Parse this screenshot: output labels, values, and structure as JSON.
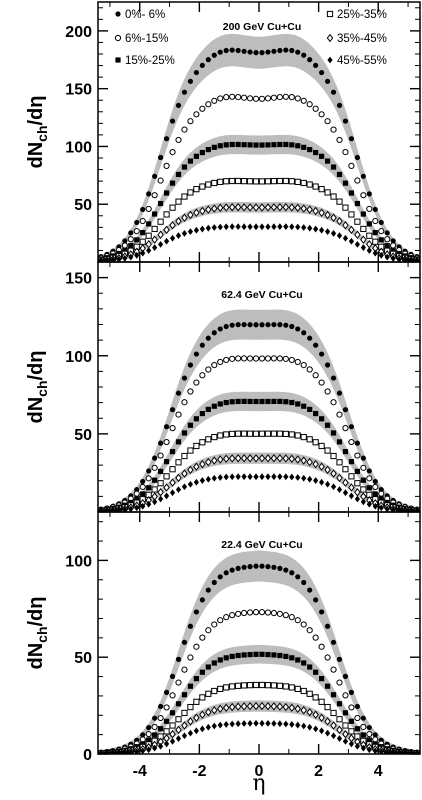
{
  "chart_data": [
    {
      "type": "scatter",
      "title": "200 GeV Cu+Cu",
      "ylabel": "dN_ch/dη",
      "xlim": [
        -5.4,
        5.4
      ],
      "ylim": [
        0,
        225
      ],
      "yticks": [
        50,
        100,
        150,
        200
      ],
      "xticks": [
        -4,
        -2,
        0,
        2,
        4
      ],
      "legend": "top",
      "band_halfwidth_fraction": 0.07,
      "series": [
        {
          "name": "0%- 6%",
          "marker": "filled-circle",
          "plateau": 186,
          "dip": 0.97,
          "edge": 3.3
        },
        {
          "name": "6%-15%",
          "marker": "open-circle",
          "plateau": 145,
          "dip": 0.97,
          "edge": 3.3
        },
        {
          "name": "15%-25%",
          "marker": "filled-square",
          "plateau": 103,
          "dip": 0.98,
          "edge": 3.3
        },
        {
          "name": "25%-35%",
          "marker": "open-square",
          "plateau": 71,
          "dip": 0.98,
          "edge": 3.3
        },
        {
          "name": "35%-45%",
          "marker": "open-diamond",
          "plateau": 48,
          "dip": 0.98,
          "edge": 3.3
        },
        {
          "name": "45%-55%",
          "marker": "filled-diamond",
          "plateau": 31,
          "dip": 0.98,
          "edge": 3.3
        }
      ]
    },
    {
      "type": "scatter",
      "title": "62.4 GeV Cu+Cu",
      "ylabel": "dN_ch/dη",
      "xlim": [
        -5.4,
        5.4
      ],
      "ylim": [
        0,
        160
      ],
      "yticks": [
        50,
        100,
        150
      ],
      "xticks": [
        -4,
        -2,
        0,
        2,
        4
      ],
      "band_halfwidth_fraction": 0.07,
      "series": [
        {
          "name": "0%- 6%",
          "marker": "filled-circle",
          "plateau": 122,
          "dip": 0.98,
          "edge": 3.0
        },
        {
          "name": "6%-15%",
          "marker": "open-circle",
          "plateau": 100,
          "dip": 0.98,
          "edge": 3.0
        },
        {
          "name": "15%-25%",
          "marker": "filled-square",
          "plateau": 72,
          "dip": 0.98,
          "edge": 3.0
        },
        {
          "name": "25%-35%",
          "marker": "open-square",
          "plateau": 51,
          "dip": 0.98,
          "edge": 3.0
        },
        {
          "name": "35%-45%",
          "marker": "open-diamond",
          "plateau": 35,
          "dip": 0.98,
          "edge": 3.0
        },
        {
          "name": "45%-55%",
          "marker": "filled-diamond",
          "plateau": 23,
          "dip": 0.98,
          "edge": 3.0
        }
      ]
    },
    {
      "type": "scatter",
      "title": "22.4 GeV Cu+Cu",
      "ylabel": "dN_ch/dη",
      "xlabel": "η",
      "xlim": [
        -5.4,
        5.4
      ],
      "ylim": [
        0,
        125
      ],
      "yticks": [
        0,
        50,
        100
      ],
      "xticks": [
        -4,
        -2,
        0,
        2,
        4
      ],
      "band_halfwidth_fraction": 0.07,
      "series": [
        {
          "name": "0%- 6%",
          "marker": "filled-circle",
          "plateau": 98,
          "dip": 0.99,
          "edge": 2.7
        },
        {
          "name": "6%-15%",
          "marker": "open-circle",
          "plateau": 74,
          "dip": 0.99,
          "edge": 2.7
        },
        {
          "name": "15%-25%",
          "marker": "filled-square",
          "plateau": 52,
          "dip": 0.99,
          "edge": 2.7
        },
        {
          "name": "25%-35%",
          "marker": "open-square",
          "plateau": 36,
          "dip": 0.99,
          "edge": 2.7
        },
        {
          "name": "35%-45%",
          "marker": "open-diamond",
          "plateau": 25,
          "dip": 0.99,
          "edge": 2.7
        },
        {
          "name": "45%-55%",
          "marker": "filled-diamond",
          "plateau": 16,
          "dip": 0.99,
          "edge": 2.7
        }
      ]
    }
  ],
  "colors": {
    "band": "#bdbdbd",
    "axis": "#000000",
    "marker": "#000000"
  }
}
